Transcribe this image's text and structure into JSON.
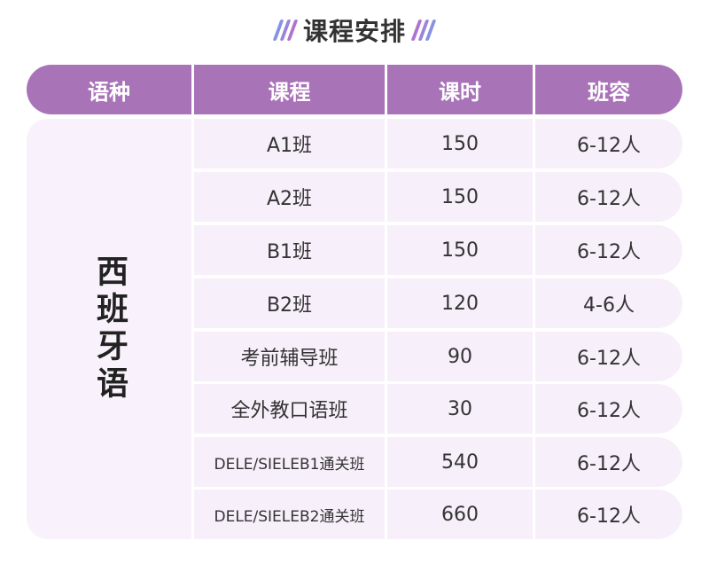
{
  "colors": {
    "header_bg": "#a973b8",
    "row_bg": "#f7effa",
    "lang_bg": "#f9f1fb",
    "slash_blue": "#7f8de0",
    "slash_purple": "#b26fd0"
  },
  "title": "课程安排",
  "header": {
    "language": "语种",
    "course": "课程",
    "hours": "课时",
    "capacity": "班容"
  },
  "language": "西班牙语",
  "rows": [
    {
      "course": "A1班",
      "hours": "150",
      "capacity": "6-12人"
    },
    {
      "course": "A2班",
      "hours": "150",
      "capacity": "6-12人"
    },
    {
      "course": "B1班",
      "hours": "150",
      "capacity": "6-12人"
    },
    {
      "course": "B2班",
      "hours": "120",
      "capacity": "4-6人"
    },
    {
      "course": "考前辅导班",
      "hours": "90",
      "capacity": "6-12人"
    },
    {
      "course": "全外教口语班",
      "hours": "30",
      "capacity": "6-12人"
    },
    {
      "course": "DELE/SIELEB1通关班",
      "hours": "540",
      "capacity": "6-12人"
    },
    {
      "course": "DELE/SIELEB2通关班",
      "hours": "660",
      "capacity": "6-12人"
    }
  ]
}
